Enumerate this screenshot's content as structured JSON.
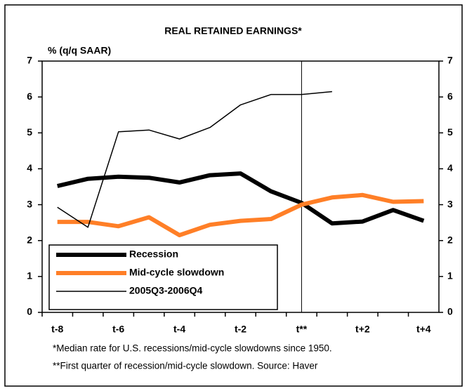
{
  "chart_data": {
    "type": "line",
    "title": "REAL RETAINED EARNINGS*",
    "y_label": "% (q/q SAAR)",
    "categories": [
      "t-8",
      null,
      "t-6",
      null,
      "t-4",
      null,
      "t-2",
      null,
      "t**",
      null,
      "t+2",
      null,
      "t+4"
    ],
    "series": [
      {
        "name": "Recession",
        "color": "#000000",
        "width": 6,
        "values": [
          3.52,
          3.72,
          3.78,
          3.75,
          3.62,
          3.82,
          3.87,
          3.37,
          3.05,
          2.48,
          2.53,
          2.85,
          2.55
        ]
      },
      {
        "name": "Mid-cycle slowdown",
        "color": "#ff7f27",
        "width": 6,
        "values": [
          2.52,
          2.52,
          2.4,
          2.65,
          2.15,
          2.44,
          2.55,
          2.6,
          3.0,
          3.2,
          3.27,
          3.08,
          3.1
        ]
      },
      {
        "name": "2005Q3-2006Q4",
        "color": "#000000",
        "width": 1.5,
        "values": [
          2.93,
          2.37,
          5.03,
          5.08,
          4.83,
          5.15,
          5.78,
          6.07,
          6.07,
          6.15,
          null,
          null,
          null
        ]
      }
    ],
    "ylim": [
      0,
      7
    ],
    "yticks": [
      0,
      1,
      2,
      3,
      4,
      5,
      6,
      7
    ],
    "y2lim": [
      0,
      7
    ],
    "y2ticks": [
      0,
      1,
      2,
      3,
      4,
      5,
      6,
      7
    ],
    "notes": [
      "*Median rate for U.S. recessions/mid-cycle slowdowns since 1950.",
      "**First quarter of recession/mid-cycle slowdown.  Source: Haver"
    ]
  }
}
